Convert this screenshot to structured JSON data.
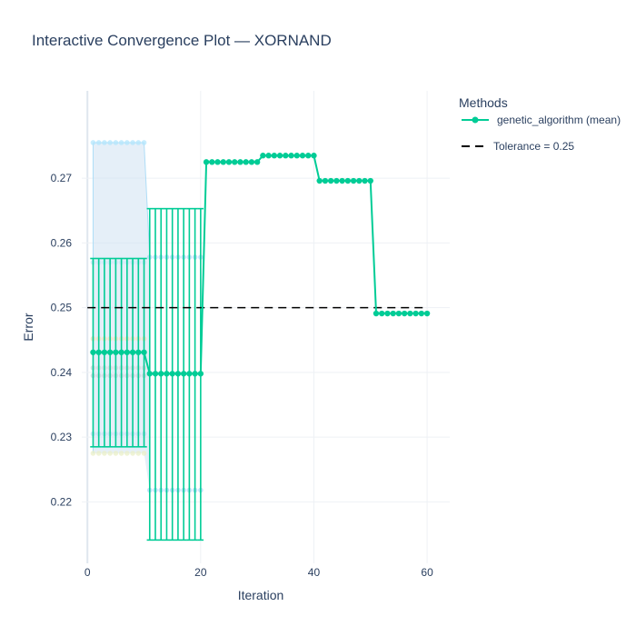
{
  "chart_data": {
    "type": "line",
    "title": "Interactive Convergence Plot — XORNAND",
    "xlabel": "Iteration",
    "ylabel": "Error",
    "xlim": [
      -1,
      64
    ],
    "ylim": [
      0.2105,
      0.2835
    ],
    "x_ticks": [
      0,
      20,
      40,
      60
    ],
    "y_ticks": [
      0.22,
      0.23,
      0.24,
      0.25,
      0.26,
      0.27
    ],
    "y_tick_labels": [
      "0.22",
      "0.23",
      "0.24",
      "0.25",
      "0.26",
      "0.27"
    ],
    "legend_title": "Methods",
    "legend_position": "top-right",
    "grid": true,
    "series": [
      {
        "name": "genetic_algorithm (mean)",
        "color": "#00cc96",
        "segments": [
          {
            "x_start": 1,
            "x_end": 10,
            "mean": 0.2431,
            "lower": 0.2285,
            "upper": 0.2576
          },
          {
            "x_start": 11,
            "x_end": 20,
            "mean": 0.2398,
            "lower": 0.2141,
            "upper": 0.2653
          },
          {
            "x_start": 21,
            "x_end": 30,
            "mean": 0.2725,
            "lower": null,
            "upper": null
          },
          {
            "x_start": 31,
            "x_end": 40,
            "mean": 0.2735,
            "lower": null,
            "upper": null
          },
          {
            "x_start": 41,
            "x_end": 50,
            "mean": 0.2696,
            "lower": null,
            "upper": null
          },
          {
            "x_start": 51,
            "x_end": 60,
            "mean": 0.2491,
            "lower": null,
            "upper": null
          }
        ]
      },
      {
        "name": "Tolerance = 0.25",
        "color": "#000000",
        "style": "dash",
        "x": [
          0,
          60
        ],
        "y": [
          0.25,
          0.25
        ]
      }
    ],
    "faded_runs": {
      "color": "#9ad0f5",
      "segment_1": {
        "x_start": 1,
        "x_end": 10,
        "values": [
          0.2755,
          0.257,
          0.2452,
          0.2407,
          0.2395,
          0.2305,
          0.2275
        ]
      },
      "segment_2": {
        "x_start": 11,
        "x_end": 20,
        "values": [
          0.2578,
          0.2218
        ]
      },
      "band_fill": {
        "x": [
          1,
          10,
          11
        ],
        "upper": [
          0.2755,
          0.2755,
          0.2578
        ],
        "lower": [
          0.2275,
          0.2275,
          0.2218
        ]
      }
    }
  }
}
